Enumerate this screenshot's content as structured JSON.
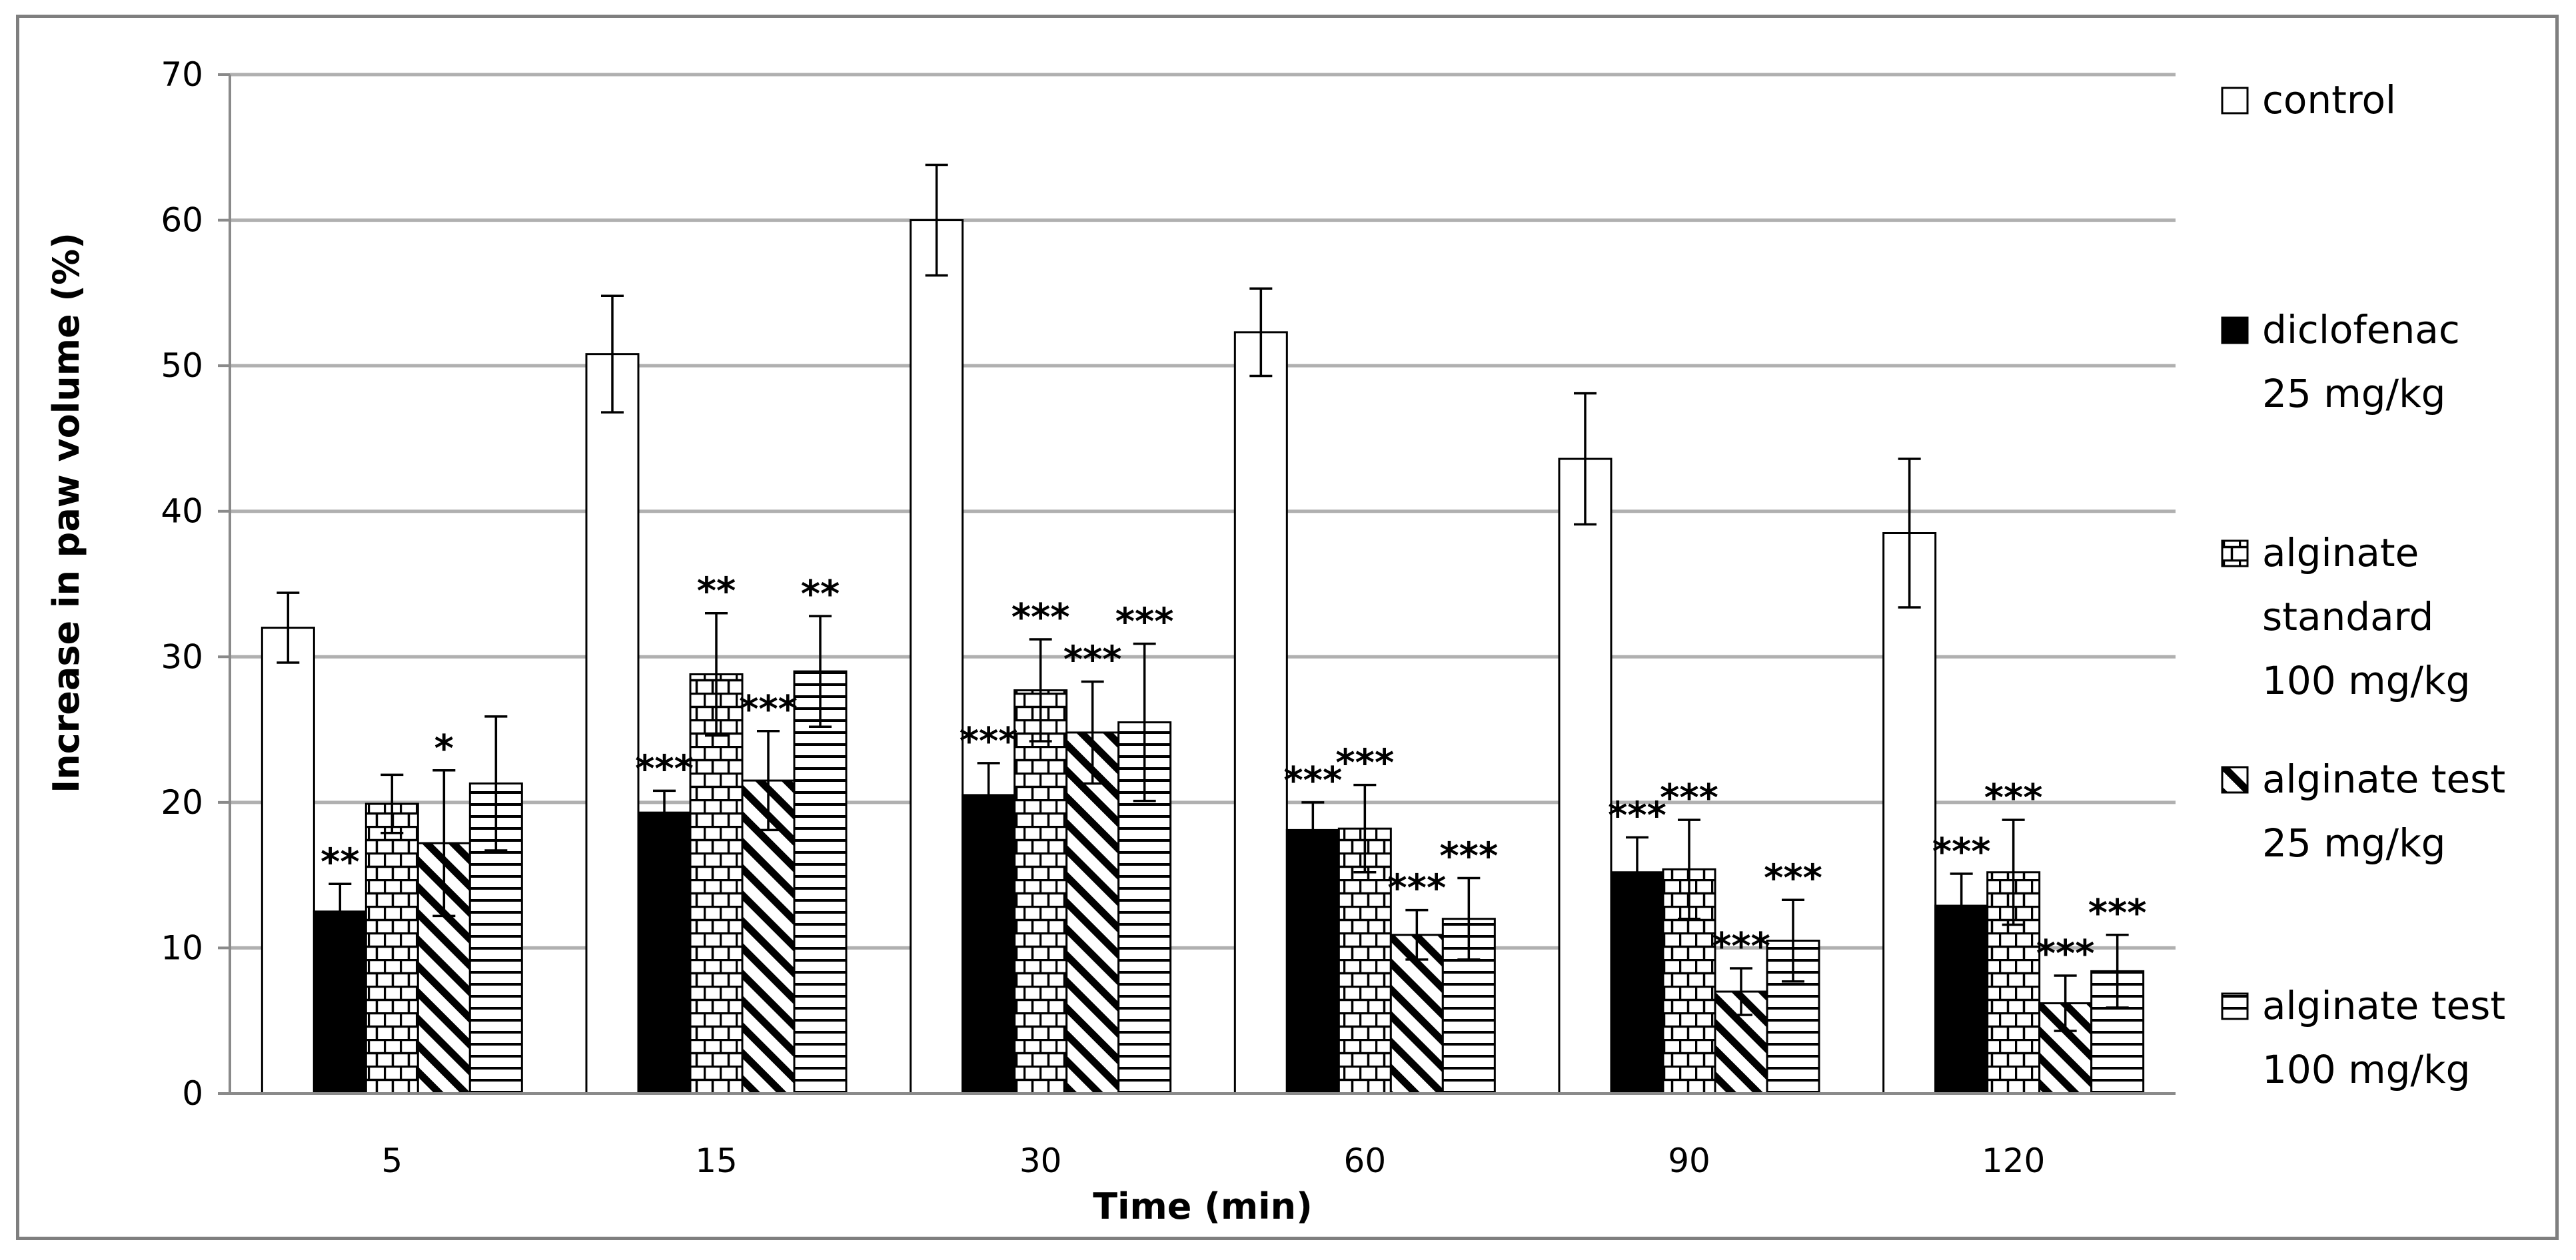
{
  "chart_data": {
    "type": "bar",
    "title": "",
    "xlabel": "Time (min)",
    "ylabel": "Increase in paw volume (%)",
    "ylim": [
      0,
      70
    ],
    "yticks": [
      0,
      10,
      20,
      30,
      40,
      50,
      60,
      70
    ],
    "grid": true,
    "legend_position": "right",
    "categories": [
      "5",
      "15",
      "30",
      "60",
      "90",
      "120"
    ],
    "series": [
      {
        "name": "control",
        "label_lines": [
          "control"
        ],
        "pattern": "empty",
        "values": [
          32,
          50.8,
          60,
          52.3,
          43.6,
          38.5
        ],
        "errors": [
          2.4,
          4.0,
          3.8,
          3.0,
          4.5,
          5.1
        ],
        "significance": [
          "",
          "",
          "",
          "",
          "",
          ""
        ]
      },
      {
        "name": "diclofenac 25 mg/kg",
        "label_lines": [
          "diclofenac",
          "25 mg/kg"
        ],
        "pattern": "solid",
        "values": [
          12.5,
          19.3,
          20.5,
          18.1,
          15.2,
          12.9
        ],
        "errors": [
          1.9,
          1.5,
          2.2,
          1.9,
          2.4,
          2.2
        ],
        "significance": [
          "**",
          "***",
          "***",
          "***",
          "***",
          "***"
        ]
      },
      {
        "name": "alginate standard 100 mg/kg",
        "label_lines": [
          "alginate",
          "standard",
          "100 mg/kg"
        ],
        "pattern": "brick",
        "values": [
          19.9,
          28.8,
          27.7,
          18.2,
          15.4,
          15.2
        ],
        "errors": [
          2.0,
          4.2,
          3.5,
          3.0,
          3.4,
          3.6
        ],
        "significance": [
          "",
          "**",
          "***",
          "***",
          "***",
          "***"
        ]
      },
      {
        "name": "alginate test 25 mg/kg",
        "label_lines": [
          "alginate test",
          "25 mg/kg"
        ],
        "pattern": "diagonal",
        "values": [
          17.2,
          21.5,
          24.8,
          10.9,
          7.0,
          6.2
        ],
        "errors": [
          5.0,
          3.4,
          3.5,
          1.7,
          1.6,
          1.9
        ],
        "significance": [
          "*",
          "***",
          "***",
          "***",
          "***",
          "***"
        ]
      },
      {
        "name": "alginate test 100 mg/kg",
        "label_lines": [
          "alginate test",
          "100 mg/kg"
        ],
        "pattern": "horizontal",
        "values": [
          21.3,
          29.0,
          25.5,
          12.0,
          10.5,
          8.4
        ],
        "errors": [
          4.6,
          3.8,
          5.4,
          2.8,
          2.8,
          2.5
        ],
        "significance": [
          "",
          "**",
          "***",
          "***",
          "***",
          "***"
        ]
      }
    ]
  }
}
